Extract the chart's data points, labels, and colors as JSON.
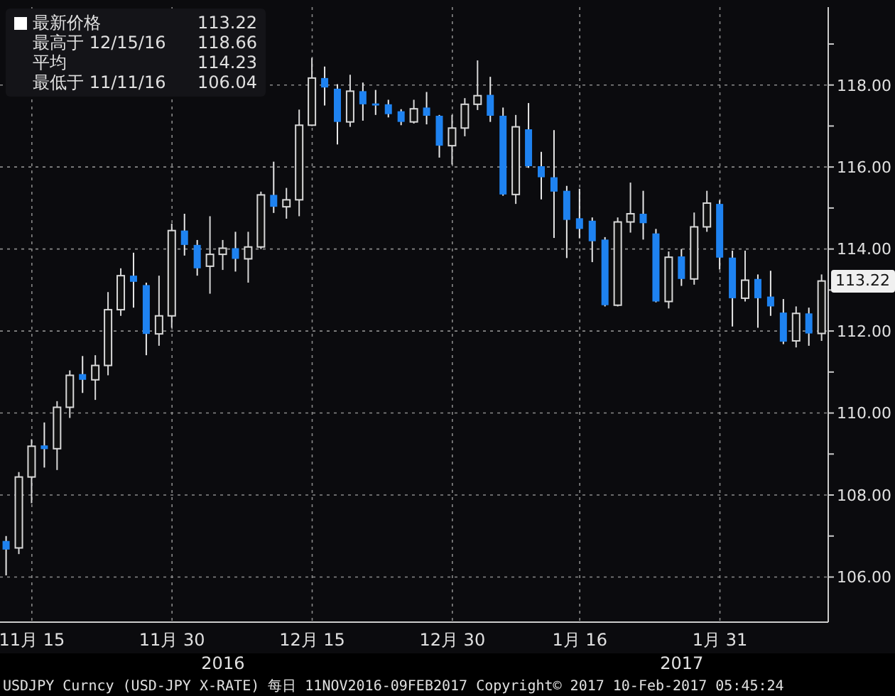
{
  "chart_data": {
    "type": "candlestick",
    "categories": [
      null,
      null,
      "11月 15",
      null,
      null,
      null,
      null,
      null,
      null,
      null,
      null,
      null,
      null,
      "11月 30",
      null,
      null,
      null,
      null,
      null,
      null,
      null,
      null,
      null,
      null,
      "12月 15",
      null,
      null,
      null,
      null,
      null,
      null,
      null,
      null,
      null,
      null,
      "12月 30",
      null,
      null,
      null,
      null,
      null,
      null,
      null,
      null,
      null,
      "1月 16",
      null,
      null,
      null,
      null,
      null,
      null,
      null,
      null,
      null,
      null,
      "1月 31",
      null,
      null,
      null,
      null,
      null,
      null,
      null,
      null
    ],
    "ohlc": [
      [
        106.88,
        107.0,
        106.04,
        106.67
      ],
      [
        106.71,
        108.56,
        106.56,
        108.44
      ],
      [
        108.44,
        109.36,
        107.8,
        109.19
      ],
      [
        109.21,
        109.77,
        108.67,
        109.12
      ],
      [
        109.13,
        110.29,
        108.61,
        110.14
      ],
      [
        110.14,
        111.04,
        109.88,
        110.92
      ],
      [
        110.95,
        111.39,
        110.49,
        110.81
      ],
      [
        110.81,
        111.41,
        110.32,
        111.16
      ],
      [
        111.16,
        112.95,
        110.92,
        112.52
      ],
      [
        112.52,
        113.53,
        112.37,
        113.35
      ],
      [
        113.35,
        113.91,
        112.57,
        113.2
      ],
      [
        113.12,
        113.18,
        111.41,
        111.93
      ],
      [
        111.93,
        113.35,
        111.64,
        112.37
      ],
      [
        112.37,
        114.62,
        112.08,
        114.45
      ],
      [
        114.45,
        114.86,
        113.84,
        114.1
      ],
      [
        114.1,
        114.22,
        113.35,
        113.53
      ],
      [
        113.58,
        114.8,
        112.91,
        113.87
      ],
      [
        113.87,
        114.22,
        113.49,
        114.02
      ],
      [
        114.02,
        114.42,
        113.45,
        113.76
      ],
      [
        113.76,
        114.42,
        113.18,
        114.05
      ],
      [
        114.05,
        115.4,
        114.0,
        115.32
      ],
      [
        115.32,
        116.13,
        114.88,
        115.03
      ],
      [
        115.03,
        115.49,
        114.74,
        115.2
      ],
      [
        115.2,
        117.4,
        114.8,
        117.02
      ],
      [
        117.02,
        118.66,
        117.0,
        118.17
      ],
      [
        118.17,
        118.45,
        117.5,
        117.94
      ],
      [
        117.91,
        118.02,
        116.55,
        117.1
      ],
      [
        117.1,
        118.25,
        116.98,
        117.85
      ],
      [
        117.85,
        118.06,
        117.13,
        117.53
      ],
      [
        117.55,
        117.88,
        117.27,
        117.5
      ],
      [
        117.53,
        117.64,
        117.21,
        117.29
      ],
      [
        117.36,
        117.41,
        117.02,
        117.1
      ],
      [
        117.1,
        117.64,
        117.06,
        117.42
      ],
      [
        117.45,
        117.83,
        117.04,
        117.25
      ],
      [
        117.25,
        117.27,
        116.23,
        116.52
      ],
      [
        116.52,
        117.27,
        116.06,
        116.95
      ],
      [
        116.95,
        117.68,
        116.75,
        117.53
      ],
      [
        117.53,
        118.6,
        117.39,
        117.74
      ],
      [
        117.76,
        118.2,
        117.1,
        117.25
      ],
      [
        117.25,
        117.45,
        115.3,
        115.33
      ],
      [
        115.33,
        117.27,
        115.1,
        116.98
      ],
      [
        116.92,
        117.56,
        115.98,
        116.02
      ],
      [
        116.02,
        116.37,
        115.21,
        115.75
      ],
      [
        115.75,
        116.9,
        114.27,
        115.4
      ],
      [
        115.42,
        115.54,
        113.78,
        114.71
      ],
      [
        114.75,
        115.47,
        114.26,
        114.49
      ],
      [
        114.69,
        114.77,
        113.68,
        114.19
      ],
      [
        114.23,
        114.29,
        112.6,
        112.63
      ],
      [
        112.63,
        114.77,
        112.6,
        114.66
      ],
      [
        114.66,
        115.62,
        114.4,
        114.86
      ],
      [
        114.86,
        115.42,
        114.23,
        114.63
      ],
      [
        114.38,
        114.49,
        112.7,
        112.72
      ],
      [
        112.72,
        113.94,
        112.55,
        113.8
      ],
      [
        113.82,
        114.0,
        113.1,
        113.27
      ],
      [
        113.27,
        114.89,
        113.13,
        114.54
      ],
      [
        114.54,
        115.42,
        114.42,
        115.12
      ],
      [
        115.1,
        115.19,
        113.5,
        113.79
      ],
      [
        113.79,
        113.96,
        112.11,
        112.8
      ],
      [
        112.8,
        113.96,
        112.72,
        113.24
      ],
      [
        113.27,
        113.38,
        112.08,
        112.8
      ],
      [
        112.84,
        113.47,
        112.37,
        112.6
      ],
      [
        112.45,
        112.78,
        111.68,
        111.74
      ],
      [
        111.76,
        112.6,
        111.6,
        112.43
      ],
      [
        112.43,
        112.57,
        111.64,
        111.94
      ],
      [
        111.94,
        113.38,
        111.76,
        113.22
      ]
    ],
    "colors": [
      "#1e82f0",
      "#d8d8d8",
      "#d8d8d8",
      "#1e82f0",
      "#d8d8d8",
      "#d8d8d8",
      "#1e82f0",
      "#d8d8d8",
      "#d8d8d8",
      "#d8d8d8",
      "#1e82f0",
      "#1e82f0",
      "#d8d8d8",
      "#d8d8d8",
      "#1e82f0",
      "#1e82f0",
      "#d8d8d8",
      "#d8d8d8",
      "#1e82f0",
      "#d8d8d8",
      "#d8d8d8",
      "#1e82f0",
      "#d8d8d8",
      "#d8d8d8",
      "#d8d8d8",
      "#1e82f0",
      "#1e82f0",
      "#d8d8d8",
      "#1e82f0",
      "#1e82f0",
      "#1e82f0",
      "#1e82f0",
      "#d8d8d8",
      "#1e82f0",
      "#1e82f0",
      "#d8d8d8",
      "#d8d8d8",
      "#d8d8d8",
      "#1e82f0",
      "#1e82f0",
      "#d8d8d8",
      "#1e82f0",
      "#1e82f0",
      "#1e82f0",
      "#1e82f0",
      "#1e82f0",
      "#1e82f0",
      "#1e82f0",
      "#d8d8d8",
      "#d8d8d8",
      "#1e82f0",
      "#1e82f0",
      "#d8d8d8",
      "#1e82f0",
      "#d8d8d8",
      "#d8d8d8",
      "#1e82f0",
      "#1e82f0",
      "#d8d8d8",
      "#1e82f0",
      "#1e82f0",
      "#1e82f0",
      "#d8d8d8",
      "#1e82f0",
      "#d8d8d8"
    ],
    "ylim": [
      104.9,
      119.9
    ],
    "yticks": [
      {
        "value": 106,
        "label": "106.00"
      },
      {
        "value": 107,
        "label": null
      },
      {
        "value": 108,
        "label": "108.00"
      },
      {
        "value": 109,
        "label": null
      },
      {
        "value": 110,
        "label": "110.00"
      },
      {
        "value": 111,
        "label": null
      },
      {
        "value": 112,
        "label": "112.00"
      },
      {
        "value": 113,
        "label": null
      },
      {
        "value": 114,
        "label": "114.00"
      },
      {
        "value": 115,
        "label": null
      },
      {
        "value": 116,
        "label": "116.00"
      },
      {
        "value": 117,
        "label": null
      },
      {
        "value": 118,
        "label": "118.00"
      },
      {
        "value": 119,
        "label": null
      }
    ],
    "grid": true,
    "annotations": [
      "最新价格",
      "113.22",
      "最高于 12/15/16",
      "118.66",
      "平均",
      "114.23",
      "最低于 11/11/16",
      "106.04",
      "113.22",
      "2016",
      "2017",
      "USDJPY Curncy (USD-JPY X-RATE)  每日 11NOV2016-09FEB2017 Copyright© 2017  10-Feb-2017 05:45:24"
    ]
  }
}
